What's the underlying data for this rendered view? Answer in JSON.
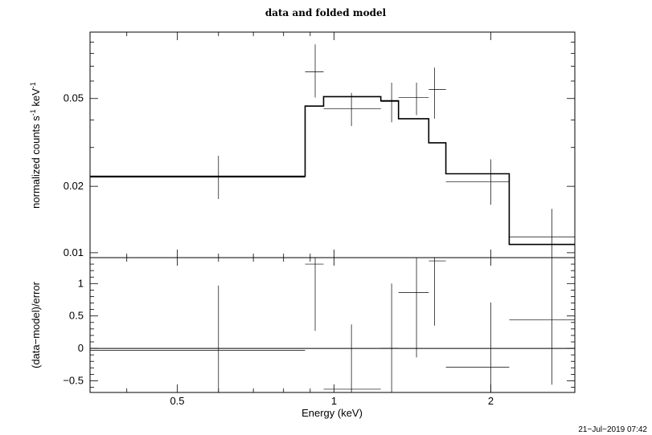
{
  "chart_data": [
    {
      "type": "scatter",
      "title": "data and folded model",
      "ylabel": "normalized counts s",
      "ylabel_sup1": "-1",
      "ylabel_mid": " keV",
      "ylabel_sup2": "-1",
      "xscale": "log",
      "yscale": "log",
      "xlim": [
        0.34,
        2.9
      ],
      "ylim": [
        0.0095,
        0.1
      ],
      "yticks": [
        {
          "v": 0.01,
          "label": "0.01"
        },
        {
          "v": 0.02,
          "label": "0.02"
        },
        {
          "v": 0.05,
          "label": "0.05"
        }
      ],
      "data": [
        {
          "xlo": 0.34,
          "xhi": 0.88,
          "y": 0.022,
          "ylo": 0.0175,
          "yhi": 0.0275,
          "xc": 0.6
        },
        {
          "xlo": 0.88,
          "xhi": 0.955,
          "y": 0.066,
          "ylo": 0.0505,
          "yhi": 0.088,
          "xc": 0.92
        },
        {
          "xlo": 0.955,
          "xhi": 1.23,
          "y": 0.045,
          "ylo": 0.0375,
          "yhi": 0.053,
          "xc": 1.08
        },
        {
          "xlo": 1.23,
          "xhi": 1.33,
          "y": 0.0485,
          "ylo": 0.039,
          "yhi": 0.059,
          "xc": 1.29
        },
        {
          "xlo": 1.33,
          "xhi": 1.52,
          "y": 0.0505,
          "ylo": 0.042,
          "yhi": 0.059,
          "xc": 1.44
        },
        {
          "xlo": 1.52,
          "xhi": 1.64,
          "y": 0.055,
          "ylo": 0.0405,
          "yhi": 0.069,
          "xc": 1.56
        },
        {
          "xlo": 1.64,
          "xhi": 2.17,
          "y": 0.021,
          "ylo": 0.0165,
          "yhi": 0.0265,
          "xc": 2.0
        },
        {
          "xlo": 2.17,
          "xhi": 2.9,
          "y": 0.0118,
          "ylo": 0.0094,
          "yhi": 0.0158,
          "xc": 2.62
        }
      ],
      "model": [
        {
          "xlo": 0.34,
          "xhi": 0.88,
          "y": 0.0222
        },
        {
          "xlo": 0.88,
          "xhi": 0.955,
          "y": 0.0462
        },
        {
          "xlo": 0.955,
          "xhi": 1.23,
          "y": 0.051
        },
        {
          "xlo": 1.23,
          "xhi": 1.33,
          "y": 0.0488
        },
        {
          "xlo": 1.33,
          "xhi": 1.52,
          "y": 0.0405
        },
        {
          "xlo": 1.52,
          "xhi": 1.64,
          "y": 0.0315
        },
        {
          "xlo": 1.64,
          "xhi": 2.17,
          "y": 0.0228
        },
        {
          "xlo": 2.17,
          "xhi": 2.9,
          "y": 0.0109
        }
      ]
    },
    {
      "type": "scatter",
      "ylabel": "(data−model)/error",
      "xlabel": "Energy (keV)",
      "xscale": "log",
      "xlim": [
        0.34,
        2.9
      ],
      "ylim": [
        -0.68,
        1.4
      ],
      "xticks": [
        {
          "v": 0.5,
          "label": "0.5"
        },
        {
          "v": 1,
          "label": "1"
        },
        {
          "v": 2,
          "label": "2"
        }
      ],
      "yticks": [
        {
          "v": -0.5,
          "label": "−0.5"
        },
        {
          "v": 0,
          "label": "0"
        },
        {
          "v": 0.5,
          "label": "0.5"
        },
        {
          "v": 1,
          "label": "1"
        }
      ],
      "residuals": [
        {
          "xlo": 0.34,
          "xhi": 0.88,
          "y": -0.03,
          "ylo": -1.0,
          "yhi": 0.97,
          "xc": 0.6
        },
        {
          "xlo": 0.88,
          "xhi": 0.955,
          "y": 1.3,
          "ylo": 0.27,
          "yhi": 1.75,
          "xc": 0.92
        },
        {
          "xlo": 0.955,
          "xhi": 1.23,
          "y": -0.63,
          "ylo": -1.6,
          "yhi": 0.37,
          "xc": 1.08
        },
        {
          "xlo": 1.23,
          "xhi": 1.33,
          "y": 0.0,
          "ylo": -1.0,
          "yhi": 1.0,
          "xc": 1.29
        },
        {
          "xlo": 1.33,
          "xhi": 1.52,
          "y": 0.86,
          "ylo": -0.14,
          "yhi": 1.86,
          "xc": 1.44
        },
        {
          "xlo": 1.52,
          "xhi": 1.64,
          "y": 1.35,
          "ylo": 0.35,
          "yhi": 2.35,
          "xc": 1.56
        },
        {
          "xlo": 1.64,
          "xhi": 2.17,
          "y": -0.29,
          "ylo": -1.29,
          "yhi": 0.71,
          "xc": 2.0
        },
        {
          "xlo": 2.17,
          "xhi": 2.9,
          "y": 0.44,
          "ylo": -0.56,
          "yhi": 1.44,
          "xc": 2.62
        }
      ]
    }
  ],
  "timestamp": "21−Jul−2019 07:42"
}
